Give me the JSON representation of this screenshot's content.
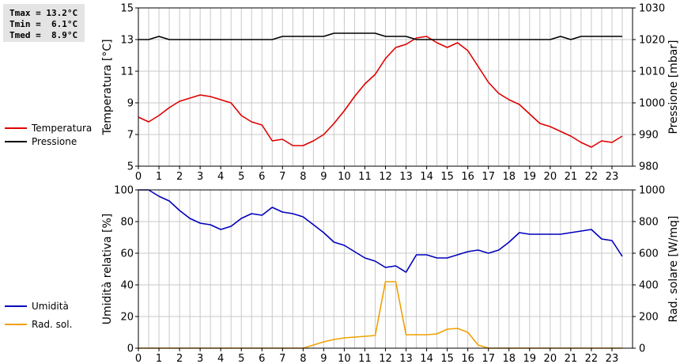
{
  "stats": {
    "tmax": "Tmax = 13.2°C",
    "tmin": "Tmin =  6.1°C",
    "tmed": "Tmed =  8.9°C"
  },
  "legend_top": [
    {
      "label": "Temperatura",
      "color": "#dd0000"
    },
    {
      "label": "Pressione",
      "color": "#000000"
    }
  ],
  "legend_bottom": [
    {
      "label": "Umidità",
      "color": "#0000bb"
    },
    {
      "label": "Rad. sol.",
      "color": "#f0a000"
    }
  ],
  "chart_data": [
    {
      "type": "line",
      "xlim": [
        0,
        24
      ],
      "x_ticks": [
        0,
        1,
        2,
        3,
        4,
        5,
        6,
        7,
        8,
        9,
        10,
        11,
        12,
        13,
        14,
        15,
        16,
        17,
        18,
        19,
        20,
        21,
        22,
        23
      ],
      "grid": true,
      "ylabel": "Temperatura [°C]",
      "ylim": [
        5,
        15
      ],
      "y_ticks": [
        5,
        7,
        9,
        11,
        13,
        15
      ],
      "y2label": "Pressione [mbar]",
      "y2lim": [
        980,
        1030
      ],
      "y2_ticks": [
        980,
        990,
        1000,
        1010,
        1020,
        1030
      ],
      "series": [
        {
          "name": "Temperatura",
          "axis": "left",
          "color": "#dd0000",
          "x": [
            0,
            0.5,
            1,
            1.5,
            2,
            2.5,
            3,
            3.5,
            4,
            4.5,
            5,
            5.5,
            6,
            6.5,
            7,
            7.5,
            8,
            8.5,
            9,
            9.5,
            10,
            10.5,
            11,
            11.5,
            12,
            12.5,
            13,
            13.5,
            14,
            14.5,
            15,
            15.5,
            16,
            16.5,
            17,
            17.5,
            18,
            18.5,
            19,
            19.5,
            20,
            20.5,
            21,
            21.5,
            22,
            22.5,
            23,
            23.5
          ],
          "y": [
            8.1,
            7.8,
            8.2,
            8.7,
            9.1,
            9.3,
            9.5,
            9.4,
            9.2,
            9.0,
            8.2,
            7.8,
            7.6,
            6.6,
            6.7,
            6.3,
            6.3,
            6.6,
            7.0,
            7.7,
            8.5,
            9.4,
            10.2,
            10.8,
            11.8,
            12.5,
            12.7,
            13.1,
            13.2,
            12.8,
            12.5,
            12.8,
            12.3,
            11.3,
            10.3,
            9.6,
            9.2,
            8.9,
            8.3,
            7.7,
            7.5,
            7.2,
            6.9,
            6.5,
            6.2,
            6.6,
            6.5,
            6.9
          ]
        },
        {
          "name": "Pressione",
          "axis": "right",
          "color": "#000000",
          "x": [
            0,
            0.5,
            1,
            1.5,
            2,
            2.5,
            3,
            3.5,
            4,
            4.5,
            5,
            5.5,
            6,
            6.5,
            7,
            7.5,
            8,
            8.5,
            9,
            9.5,
            10,
            10.5,
            11,
            11.5,
            12,
            12.5,
            13,
            13.5,
            14,
            14.5,
            15,
            15.5,
            16,
            16.5,
            17,
            17.5,
            18,
            18.5,
            19,
            19.5,
            20,
            20.5,
            21,
            21.5,
            22,
            22.5,
            23,
            23.5
          ],
          "y": [
            1020,
            1020,
            1021,
            1020,
            1020,
            1020,
            1020,
            1020,
            1020,
            1020,
            1020,
            1020,
            1020,
            1020,
            1021,
            1021,
            1021,
            1021,
            1021,
            1022,
            1022,
            1022,
            1022,
            1022,
            1021,
            1021,
            1021,
            1020,
            1020,
            1020,
            1020,
            1020,
            1020,
            1020,
            1020,
            1020,
            1020,
            1020,
            1020,
            1020,
            1020,
            1021,
            1020,
            1021,
            1021,
            1021,
            1021,
            1021
          ]
        }
      ]
    },
    {
      "type": "line",
      "xlim": [
        0,
        24
      ],
      "x_ticks": [
        0,
        1,
        2,
        3,
        4,
        5,
        6,
        7,
        8,
        9,
        10,
        11,
        12,
        13,
        14,
        15,
        16,
        17,
        18,
        19,
        20,
        21,
        22,
        23
      ],
      "grid": true,
      "ylabel": "Umidità relativa [%]",
      "ylim": [
        0,
        100
      ],
      "y_ticks": [
        0,
        20,
        40,
        60,
        80,
        100
      ],
      "y2label": "Rad. solare [W/mq]",
      "y2lim": [
        0,
        1000
      ],
      "y2_ticks": [
        0,
        200,
        400,
        600,
        800,
        1000
      ],
      "series": [
        {
          "name": "Umidità",
          "axis": "left",
          "color": "#0000bb",
          "x": [
            0,
            0.5,
            1,
            1.5,
            2,
            2.5,
            3,
            3.5,
            4,
            4.5,
            5,
            5.5,
            6,
            6.5,
            7,
            7.5,
            8,
            8.5,
            9,
            9.5,
            10,
            10.5,
            11,
            11.5,
            12,
            12.5,
            13,
            13.5,
            14,
            14.5,
            15,
            15.5,
            16,
            16.5,
            17,
            17.5,
            18,
            18.5,
            19,
            19.5,
            20,
            20.5,
            21,
            21.5,
            22,
            22.5,
            23,
            23.5
          ],
          "y": [
            100,
            100,
            96,
            93,
            87,
            82,
            79,
            78,
            75,
            77,
            82,
            85,
            84,
            89,
            86,
            85,
            83,
            78,
            73,
            67,
            65,
            61,
            57,
            55,
            51,
            52,
            48,
            59,
            59,
            57,
            57,
            59,
            61,
            62,
            60,
            62,
            67,
            73,
            72,
            72,
            72,
            72,
            73,
            74,
            75,
            69,
            68,
            58
          ]
        },
        {
          "name": "Rad. sol.",
          "axis": "right",
          "color": "#f0a000",
          "x": [
            0,
            0.5,
            1,
            1.5,
            2,
            2.5,
            3,
            3.5,
            4,
            4.5,
            5,
            5.5,
            6,
            6.5,
            7,
            7.5,
            8,
            8.5,
            9,
            9.5,
            10,
            10.5,
            11,
            11.5,
            12,
            12.5,
            13,
            13.5,
            14,
            14.5,
            15,
            15.5,
            16,
            16.5,
            17,
            17.5,
            18,
            18.5,
            19,
            19.5,
            20,
            20.5,
            21,
            21.5,
            22,
            22.5,
            23,
            23.5
          ],
          "y": [
            0,
            0,
            0,
            0,
            0,
            0,
            0,
            0,
            0,
            0,
            0,
            0,
            0,
            0,
            0,
            0,
            0,
            20,
            40,
            55,
            65,
            70,
            75,
            80,
            420,
            420,
            85,
            85,
            85,
            90,
            120,
            125,
            100,
            20,
            0,
            0,
            0,
            0,
            0,
            0,
            0,
            0,
            0,
            0,
            0,
            0,
            0,
            0
          ]
        }
      ]
    }
  ]
}
